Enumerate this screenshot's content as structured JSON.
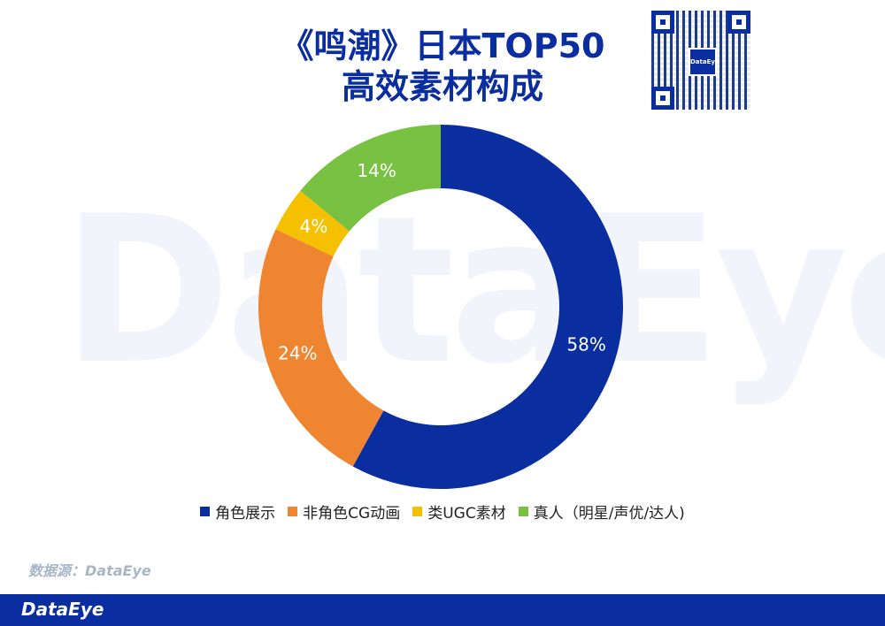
{
  "header": {
    "title_line1": "《鸣潮》日本TOP50",
    "title_line2": "高效素材构成"
  },
  "watermark": "DataEye",
  "qr": {
    "logo_text": "DataEye",
    "icon": "qr-code-icon"
  },
  "colors": {
    "title": "#0a2ea0",
    "footer": "#0a2ea0"
  },
  "chart_data": {
    "type": "pie",
    "donut": true,
    "categories": [
      "角色展示",
      "非角色CG动画",
      "类UGC素材",
      "真人（明星/声优/达人)"
    ],
    "values": [
      58,
      24,
      4,
      14
    ],
    "labels": [
      "58%",
      "24%",
      "4%",
      "14%"
    ],
    "colors": [
      "#0a2ea0",
      "#ef8431",
      "#f5c000",
      "#79c143"
    ],
    "legend_position": "bottom"
  },
  "source": "数据源：DataEye",
  "footer": {
    "logo": "DataEye"
  }
}
